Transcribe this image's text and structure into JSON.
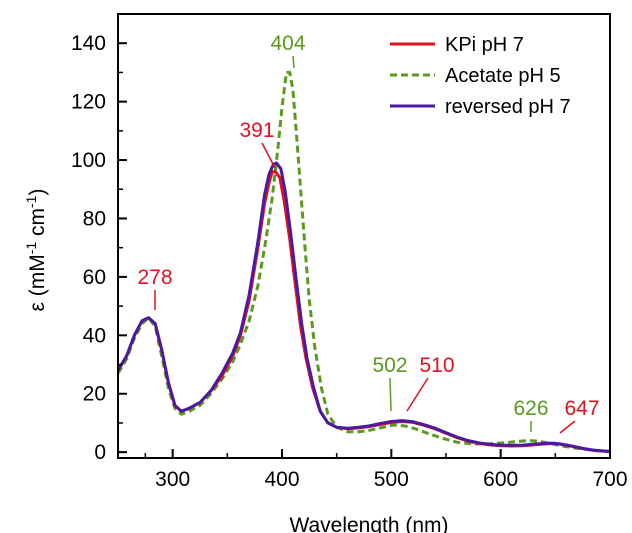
{
  "chart_data": {
    "type": "line",
    "title": "",
    "xlabel": "Wavelength (nm)",
    "ylabel": {
      "prefix": "ε (mM",
      "sup1": "-1",
      "middle": " cm",
      "sup2": "-1",
      "suffix": ")"
    },
    "xlim": [
      250,
      700
    ],
    "ylim": [
      -2,
      150
    ],
    "x_ticks": [
      300,
      400,
      500,
      600,
      700
    ],
    "y_ticks": [
      0,
      20,
      40,
      60,
      80,
      100,
      120,
      140
    ],
    "grid": false,
    "legend_position": "top-right",
    "colors": {
      "kpi": "#e3101f",
      "acetate": "#5a9a1e",
      "reversed": "#4a1aa0",
      "annot_red": "#e3101f",
      "annot_green": "#5a9a1e"
    },
    "series": [
      {
        "name": "KPi pH 7",
        "key": "kpi",
        "style": "solid",
        "points": [
          [
            250,
            28
          ],
          [
            258,
            33
          ],
          [
            265,
            40
          ],
          [
            272,
            45
          ],
          [
            278,
            46
          ],
          [
            284,
            44
          ],
          [
            290,
            35
          ],
          [
            296,
            24
          ],
          [
            302,
            16
          ],
          [
            308,
            14
          ],
          [
            315,
            15
          ],
          [
            325,
            17
          ],
          [
            335,
            21
          ],
          [
            345,
            26
          ],
          [
            355,
            33
          ],
          [
            362,
            40
          ],
          [
            370,
            52
          ],
          [
            378,
            70
          ],
          [
            384,
            85
          ],
          [
            388,
            92
          ],
          [
            391,
            96
          ],
          [
            394,
            96
          ],
          [
            398,
            94
          ],
          [
            402,
            86
          ],
          [
            407,
            73
          ],
          [
            412,
            58
          ],
          [
            417,
            43
          ],
          [
            422,
            32
          ],
          [
            428,
            22
          ],
          [
            435,
            14
          ],
          [
            442,
            10
          ],
          [
            450,
            8.5
          ],
          [
            460,
            8
          ],
          [
            470,
            8.3
          ],
          [
            480,
            8.8
          ],
          [
            490,
            9.5
          ],
          [
            500,
            10.2
          ],
          [
            510,
            10.5
          ],
          [
            520,
            10.2
          ],
          [
            530,
            9.2
          ],
          [
            540,
            8
          ],
          [
            550,
            6.5
          ],
          [
            560,
            5
          ],
          [
            570,
            3.8
          ],
          [
            580,
            3
          ],
          [
            590,
            2.5
          ],
          [
            600,
            2.2
          ],
          [
            610,
            2.1
          ],
          [
            620,
            2.2
          ],
          [
            630,
            2.5
          ],
          [
            640,
            2.8
          ],
          [
            647,
            3
          ],
          [
            655,
            2.7
          ],
          [
            665,
            2
          ],
          [
            675,
            1.2
          ],
          [
            685,
            0.6
          ],
          [
            695,
            0.3
          ],
          [
            700,
            0.2
          ]
        ]
      },
      {
        "name": "Acetate pH 5",
        "key": "acetate",
        "style": "dashed",
        "points": [
          [
            250,
            27
          ],
          [
            258,
            32
          ],
          [
            265,
            39
          ],
          [
            272,
            44
          ],
          [
            278,
            46
          ],
          [
            284,
            43
          ],
          [
            290,
            33
          ],
          [
            296,
            22
          ],
          [
            302,
            15
          ],
          [
            308,
            13
          ],
          [
            315,
            14
          ],
          [
            325,
            16
          ],
          [
            335,
            20
          ],
          [
            345,
            25
          ],
          [
            355,
            31
          ],
          [
            362,
            37
          ],
          [
            370,
            45
          ],
          [
            378,
            57
          ],
          [
            385,
            72
          ],
          [
            391,
            87
          ],
          [
            396,
            103
          ],
          [
            400,
            118
          ],
          [
            404,
            130
          ],
          [
            407,
            130
          ],
          [
            410,
            124
          ],
          [
            413,
            110
          ],
          [
            417,
            90
          ],
          [
            421,
            70
          ],
          [
            425,
            52
          ],
          [
            430,
            36
          ],
          [
            436,
            22
          ],
          [
            442,
            13
          ],
          [
            450,
            8.5
          ],
          [
            460,
            7
          ],
          [
            470,
            7
          ],
          [
            480,
            7.5
          ],
          [
            490,
            8.3
          ],
          [
            502,
            9.3
          ],
          [
            512,
            9
          ],
          [
            522,
            8
          ],
          [
            535,
            6.2
          ],
          [
            548,
            4.6
          ],
          [
            560,
            3.4
          ],
          [
            575,
            2.8
          ],
          [
            590,
            2.9
          ],
          [
            605,
            3.2
          ],
          [
            615,
            3.7
          ],
          [
            626,
            4
          ],
          [
            636,
            3.7
          ],
          [
            645,
            3
          ],
          [
            655,
            2.2
          ],
          [
            665,
            1.6
          ],
          [
            675,
            1.1
          ],
          [
            685,
            0.6
          ],
          [
            695,
            0.3
          ],
          [
            700,
            0.2
          ]
        ]
      },
      {
        "name": "reversed pH 7",
        "key": "reversed",
        "style": "solid",
        "points": [
          [
            250,
            28
          ],
          [
            258,
            33
          ],
          [
            265,
            40
          ],
          [
            272,
            45
          ],
          [
            278,
            46
          ],
          [
            284,
            44
          ],
          [
            290,
            35
          ],
          [
            296,
            24
          ],
          [
            302,
            16
          ],
          [
            308,
            14
          ],
          [
            315,
            15
          ],
          [
            325,
            17
          ],
          [
            335,
            21
          ],
          [
            345,
            27
          ],
          [
            355,
            34
          ],
          [
            362,
            41
          ],
          [
            370,
            54
          ],
          [
            378,
            72
          ],
          [
            384,
            88
          ],
          [
            388,
            95
          ],
          [
            392,
            98.5
          ],
          [
            395,
            99
          ],
          [
            399,
            97
          ],
          [
            403,
            89
          ],
          [
            408,
            75
          ],
          [
            413,
            59
          ],
          [
            418,
            44
          ],
          [
            423,
            32
          ],
          [
            429,
            22
          ],
          [
            435,
            14
          ],
          [
            442,
            10
          ],
          [
            450,
            8.5
          ],
          [
            460,
            8.2
          ],
          [
            470,
            8.5
          ],
          [
            480,
            9
          ],
          [
            490,
            9.8
          ],
          [
            500,
            10.5
          ],
          [
            510,
            10.8
          ],
          [
            520,
            10.4
          ],
          [
            530,
            9.4
          ],
          [
            540,
            8.2
          ],
          [
            550,
            6.7
          ],
          [
            560,
            5.2
          ],
          [
            570,
            4
          ],
          [
            580,
            3.2
          ],
          [
            590,
            2.7
          ],
          [
            600,
            2.4
          ],
          [
            610,
            2.3
          ],
          [
            620,
            2.4
          ],
          [
            630,
            2.7
          ],
          [
            640,
            3
          ],
          [
            647,
            3.1
          ],
          [
            655,
            2.8
          ],
          [
            665,
            2.1
          ],
          [
            675,
            1.3
          ],
          [
            685,
            0.7
          ],
          [
            695,
            0.4
          ],
          [
            700,
            0.3
          ]
        ]
      }
    ],
    "annotations": [
      {
        "label": "278",
        "x": 278,
        "y": 46,
        "color_key": "annot_red"
      },
      {
        "label": "391",
        "x": 391,
        "y": 96,
        "color_key": "annot_red"
      },
      {
        "label": "404",
        "x": 405,
        "y": 131,
        "color_key": "annot_green"
      },
      {
        "label": "502",
        "x": 502,
        "y": 9.3,
        "color_key": "annot_green"
      },
      {
        "label": "510",
        "x": 510,
        "y": 10.5,
        "color_key": "annot_red"
      },
      {
        "label": "626",
        "x": 626,
        "y": 4,
        "color_key": "annot_green"
      },
      {
        "label": "647",
        "x": 647,
        "y": 3,
        "color_key": "annot_red"
      }
    ]
  }
}
